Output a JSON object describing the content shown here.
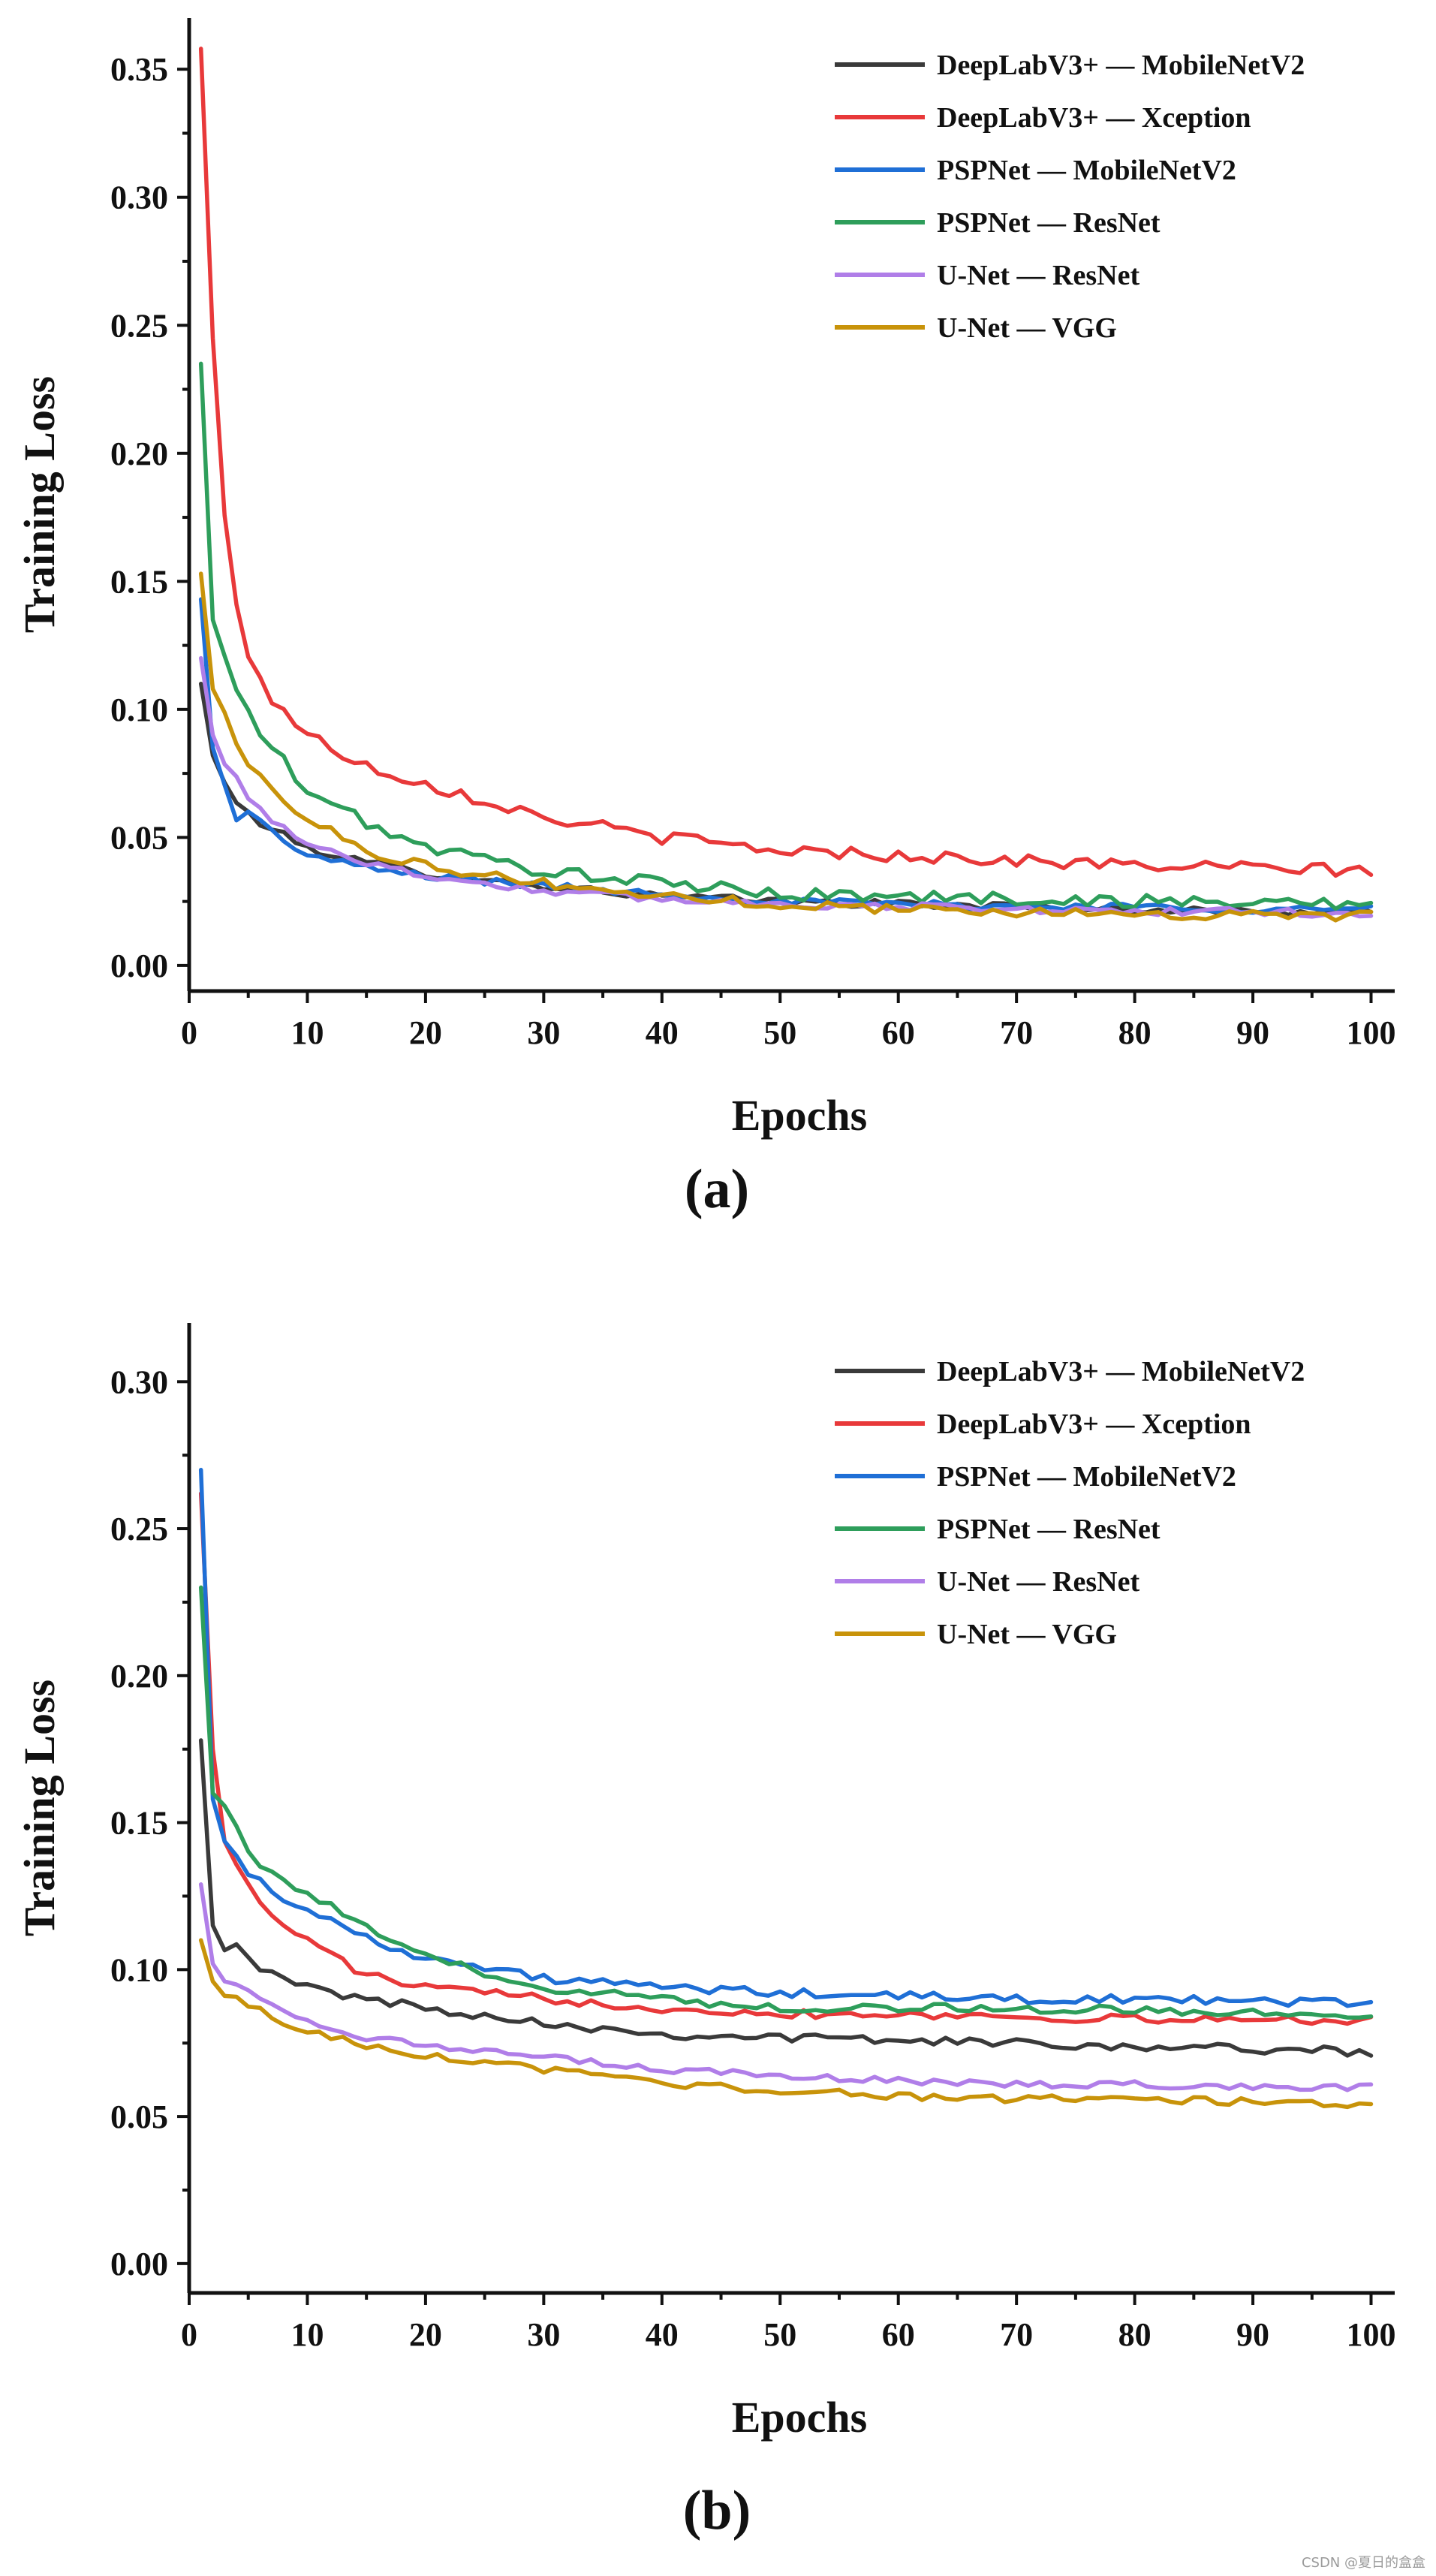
{
  "colors": {
    "DeepLabV3+ — MobileNetV2": "#3a3a3a",
    "DeepLabV3+ — Xception": "#e8393a",
    "PSPNet — MobileNetV2": "#1f6fd6",
    "PSPNet — ResNet": "#2e9e5b",
    "U-Net — ResNet": "#b07ee8",
    "U-Net — VGG": "#c8930a"
  },
  "watermark": "CSDN @夏日的盒盒",
  "chart_data": [
    {
      "type": "line",
      "panel_label": "(a)",
      "xlabel": "Epochs",
      "ylabel": "Training Loss",
      "xlim": [
        0,
        102
      ],
      "ylim": [
        -0.01,
        0.37
      ],
      "xticks": [
        0,
        10,
        20,
        30,
        40,
        50,
        60,
        70,
        80,
        90,
        100
      ],
      "yticks": [
        0.0,
        0.05,
        0.1,
        0.15,
        0.2,
        0.25,
        0.3,
        0.35
      ],
      "xtick_labels": [
        "0",
        "10",
        "20",
        "30",
        "40",
        "50",
        "60",
        "70",
        "80",
        "90",
        "100"
      ],
      "ytick_labels": [
        "0.00",
        "0.05",
        "0.10",
        "0.15",
        "0.20",
        "0.25",
        "0.30",
        "0.35"
      ],
      "legend": [
        "DeepLabV3+ — MobileNetV2",
        "DeepLabV3+ — Xception",
        "PSPNet — MobileNetV2",
        "PSPNet — ResNet",
        "U-Net — ResNet",
        "U-Net — VGG"
      ],
      "legend_position": "top-right",
      "series": [
        {
          "name": "DeepLabV3+ — MobileNetV2",
          "x": [
            1,
            2,
            3,
            4,
            5,
            7,
            10,
            15,
            20,
            30,
            40,
            50,
            60,
            70,
            80,
            90,
            100
          ],
          "values": [
            0.11,
            0.082,
            0.071,
            0.064,
            0.059,
            0.053,
            0.046,
            0.04,
            0.036,
            0.031,
            0.027,
            0.025,
            0.024,
            0.023,
            0.022,
            0.021,
            0.021
          ],
          "noise": 0.0015
        },
        {
          "name": "DeepLabV3+ — Xception",
          "x": [
            1,
            2,
            3,
            4,
            5,
            7,
            10,
            15,
            20,
            30,
            40,
            50,
            60,
            70,
            80,
            90,
            100
          ],
          "values": [
            0.358,
            0.245,
            0.175,
            0.14,
            0.122,
            0.104,
            0.09,
            0.078,
            0.071,
            0.058,
            0.05,
            0.045,
            0.043,
            0.041,
            0.039,
            0.038,
            0.037
          ],
          "noise": 0.0025
        },
        {
          "name": "PSPNet — MobileNetV2",
          "x": [
            1,
            2,
            3,
            4,
            5,
            7,
            10,
            15,
            20,
            30,
            40,
            50,
            60,
            70,
            80,
            90,
            100
          ],
          "values": [
            0.143,
            0.085,
            0.07,
            0.058,
            0.06,
            0.052,
            0.043,
            0.038,
            0.035,
            0.031,
            0.028,
            0.025,
            0.024,
            0.023,
            0.023,
            0.022,
            0.022
          ],
          "noise": 0.0015
        },
        {
          "name": "PSPNet — ResNet",
          "x": [
            1,
            2,
            3,
            4,
            5,
            7,
            10,
            15,
            20,
            30,
            40,
            50,
            60,
            70,
            80,
            90,
            100
          ],
          "values": [
            0.235,
            0.135,
            0.12,
            0.108,
            0.098,
            0.085,
            0.068,
            0.056,
            0.046,
            0.037,
            0.032,
            0.028,
            0.027,
            0.026,
            0.025,
            0.025,
            0.024
          ],
          "noise": 0.0025
        },
        {
          "name": "U-Net — ResNet",
          "x": [
            1,
            2,
            3,
            4,
            5,
            7,
            10,
            15,
            20,
            30,
            40,
            50,
            60,
            70,
            80,
            90,
            100
          ],
          "values": [
            0.12,
            0.09,
            0.078,
            0.073,
            0.066,
            0.057,
            0.048,
            0.04,
            0.035,
            0.029,
            0.026,
            0.024,
            0.023,
            0.022,
            0.021,
            0.021,
            0.02
          ],
          "noise": 0.0015
        },
        {
          "name": "U-Net — VGG",
          "x": [
            1,
            2,
            3,
            4,
            5,
            7,
            10,
            15,
            20,
            30,
            40,
            50,
            60,
            70,
            80,
            90,
            100
          ],
          "values": [
            0.153,
            0.108,
            0.098,
            0.088,
            0.078,
            0.068,
            0.058,
            0.045,
            0.039,
            0.032,
            0.027,
            0.024,
            0.022,
            0.021,
            0.02,
            0.02,
            0.019
          ],
          "noise": 0.002
        }
      ]
    },
    {
      "type": "line",
      "panel_label": "(b)",
      "xlabel": "Epochs",
      "ylabel": "Training Loss",
      "xlim": [
        0,
        102
      ],
      "ylim": [
        -0.01,
        0.32
      ],
      "xticks": [
        0,
        10,
        20,
        30,
        40,
        50,
        60,
        70,
        80,
        90,
        100
      ],
      "yticks": [
        0.0,
        0.05,
        0.1,
        0.15,
        0.2,
        0.25,
        0.3
      ],
      "xtick_labels": [
        "0",
        "10",
        "20",
        "30",
        "40",
        "50",
        "60",
        "70",
        "80",
        "90",
        "100"
      ],
      "ytick_labels": [
        "0.00",
        "0.05",
        "0.10",
        "0.15",
        "0.20",
        "0.25",
        "0.30"
      ],
      "legend": [
        "DeepLabV3+ — MobileNetV2",
        "DeepLabV3+ — Xception",
        "PSPNet — MobileNetV2",
        "PSPNet — ResNet",
        "U-Net — ResNet",
        "U-Net — VGG"
      ],
      "legend_position": "top-right",
      "series": [
        {
          "name": "DeepLabV3+ — MobileNetV2",
          "x": [
            1,
            2,
            3,
            4,
            5,
            7,
            10,
            15,
            20,
            30,
            40,
            50,
            60,
            70,
            80,
            90,
            100
          ],
          "values": [
            0.178,
            0.115,
            0.108,
            0.11,
            0.104,
            0.098,
            0.094,
            0.09,
            0.087,
            0.082,
            0.078,
            0.077,
            0.076,
            0.075,
            0.074,
            0.073,
            0.072
          ],
          "noise": 0.0015
        },
        {
          "name": "DeepLabV3+ — Xception",
          "x": [
            1,
            2,
            3,
            4,
            5,
            7,
            10,
            15,
            20,
            30,
            40,
            50,
            60,
            70,
            80,
            90,
            100
          ],
          "values": [
            0.262,
            0.175,
            0.145,
            0.136,
            0.128,
            0.118,
            0.11,
            0.098,
            0.094,
            0.09,
            0.087,
            0.085,
            0.085,
            0.084,
            0.083,
            0.083,
            0.083
          ],
          "noise": 0.0015
        },
        {
          "name": "PSPNet — MobileNetV2",
          "x": [
            1,
            2,
            3,
            4,
            5,
            7,
            10,
            15,
            20,
            30,
            40,
            50,
            60,
            70,
            80,
            90,
            100
          ],
          "values": [
            0.27,
            0.158,
            0.145,
            0.138,
            0.133,
            0.127,
            0.12,
            0.111,
            0.104,
            0.097,
            0.094,
            0.092,
            0.091,
            0.09,
            0.09,
            0.089,
            0.089
          ],
          "noise": 0.0015
        },
        {
          "name": "PSPNet — ResNet",
          "x": [
            1,
            2,
            3,
            4,
            5,
            7,
            10,
            15,
            20,
            30,
            40,
            50,
            60,
            70,
            80,
            90,
            100
          ],
          "values": [
            0.23,
            0.16,
            0.157,
            0.15,
            0.14,
            0.132,
            0.126,
            0.114,
            0.104,
            0.094,
            0.09,
            0.087,
            0.087,
            0.087,
            0.086,
            0.085,
            0.085
          ],
          "noise": 0.0015
        },
        {
          "name": "U-Net — ResNet",
          "x": [
            1,
            2,
            3,
            4,
            5,
            7,
            10,
            15,
            20,
            30,
            40,
            50,
            60,
            70,
            80,
            90,
            100
          ],
          "values": [
            0.129,
            0.102,
            0.097,
            0.095,
            0.092,
            0.088,
            0.083,
            0.077,
            0.074,
            0.07,
            0.066,
            0.064,
            0.062,
            0.061,
            0.061,
            0.06,
            0.06
          ],
          "noise": 0.0012
        },
        {
          "name": "U-Net — VGG",
          "x": [
            1,
            2,
            3,
            4,
            5,
            7,
            10,
            15,
            20,
            30,
            40,
            50,
            60,
            70,
            80,
            90,
            100
          ],
          "values": [
            0.11,
            0.096,
            0.092,
            0.09,
            0.088,
            0.084,
            0.079,
            0.074,
            0.071,
            0.066,
            0.061,
            0.059,
            0.057,
            0.056,
            0.056,
            0.055,
            0.054
          ],
          "noise": 0.0012
        }
      ]
    }
  ]
}
